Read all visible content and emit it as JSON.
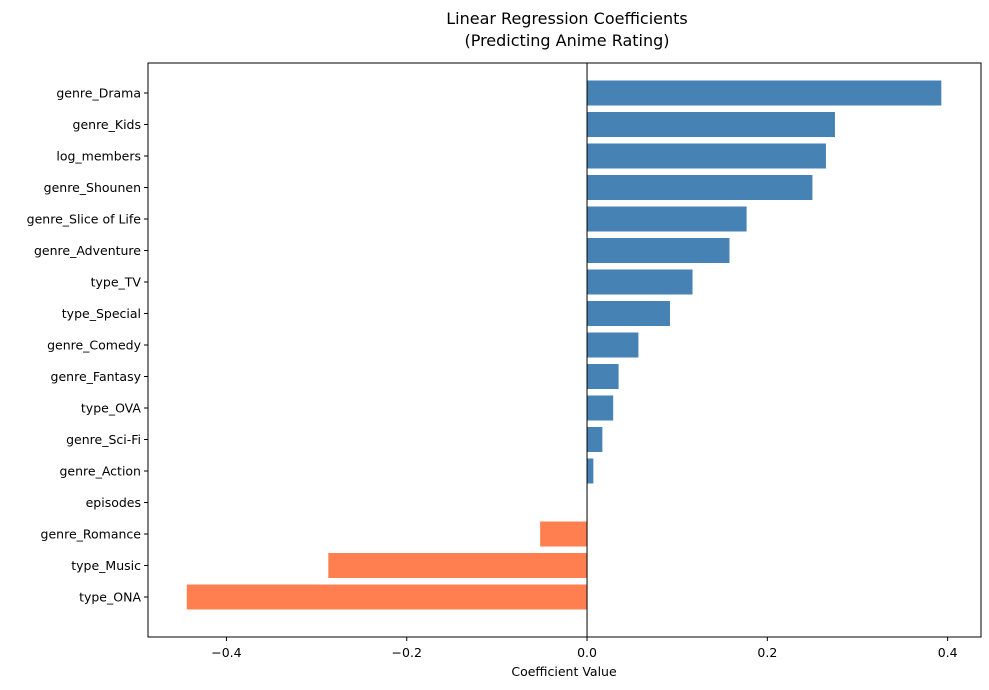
{
  "chart_data": {
    "type": "bar",
    "orientation": "horizontal",
    "title": "Linear Regression Coefficients",
    "subtitle": "(Predicting Anime Rating)",
    "xlabel": "Coefficient Value",
    "ylabel": "",
    "xlim": [
      -0.487,
      0.437
    ],
    "xticks": [
      -0.4,
      -0.2,
      0.0,
      0.2,
      0.4
    ],
    "xtick_labels": [
      "−0.4",
      "−0.2",
      "0.0",
      "0.2",
      "0.4"
    ],
    "grid": false,
    "legend": "none",
    "colors": {
      "positive": "#4682b4",
      "negative": "#ff7f50",
      "zero_line": "#000000"
    },
    "categories": [
      "genre_Drama",
      "genre_Kids",
      "log_members",
      "genre_Shounen",
      "genre_Slice of Life",
      "genre_Adventure",
      "type_TV",
      "type_Special",
      "genre_Comedy",
      "genre_Fantasy",
      "type_OVA",
      "genre_Sci-Fi",
      "genre_Action",
      "episodes",
      "genre_Romance",
      "type_Music",
      "type_ONA"
    ],
    "values": [
      0.393,
      0.275,
      0.265,
      0.25,
      0.177,
      0.158,
      0.117,
      0.092,
      0.057,
      0.035,
      0.029,
      0.017,
      0.007,
      0.0,
      -0.052,
      -0.287,
      -0.444
    ]
  }
}
